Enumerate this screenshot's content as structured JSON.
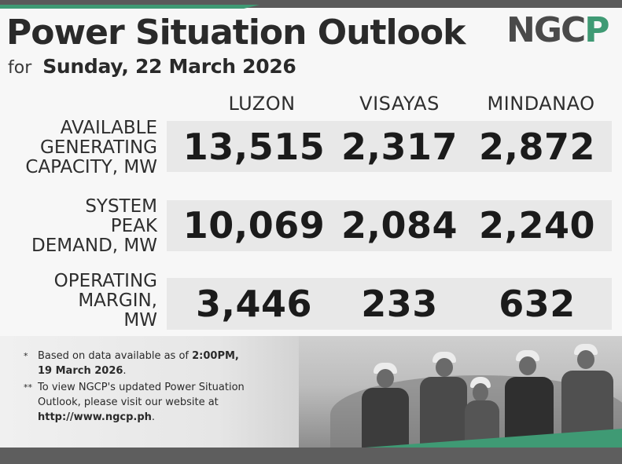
{
  "header": {
    "title": "Power Situation Outlook",
    "subtitle_prefix": "for",
    "subtitle_date": "Sunday, 22 March 2026",
    "logo_text": "NGCP"
  },
  "columns": [
    "LUZON",
    "VISAYAS",
    "MINDANAO"
  ],
  "rows": [
    {
      "label_lines": [
        "AVAILABLE",
        "GENERATING",
        "CAPACITY, MW"
      ],
      "values": [
        "13,515",
        "2,317",
        "2,872"
      ]
    },
    {
      "label_lines": [
        "SYSTEM",
        "PEAK",
        "DEMAND, MW"
      ],
      "values": [
        "10,069",
        "2,084",
        "2,240"
      ]
    },
    {
      "label_lines": [
        "OPERATING",
        "MARGIN,",
        "MW"
      ],
      "values": [
        "3,446",
        "233",
        "632"
      ]
    }
  ],
  "notes": [
    {
      "mark": "*",
      "text_before": "Based on data available as of ",
      "bold_a": "2:00PM,",
      "bold_b": "19 March 2026",
      "text_after": "."
    },
    {
      "mark": "**",
      "text_before": "To view NGCP's updated Power Situation Outlook, please visit our website at",
      "bold_url": "http://www.ngcp.ph",
      "text_after": "."
    }
  ],
  "colors": {
    "accent_green": "#3f9a74",
    "dark_bar": "#5a5a5a",
    "text_dark": "#1b1b1b",
    "band_gray": "#e8e8e8"
  },
  "icons": {
    "logo": "ngcp-logo"
  }
}
